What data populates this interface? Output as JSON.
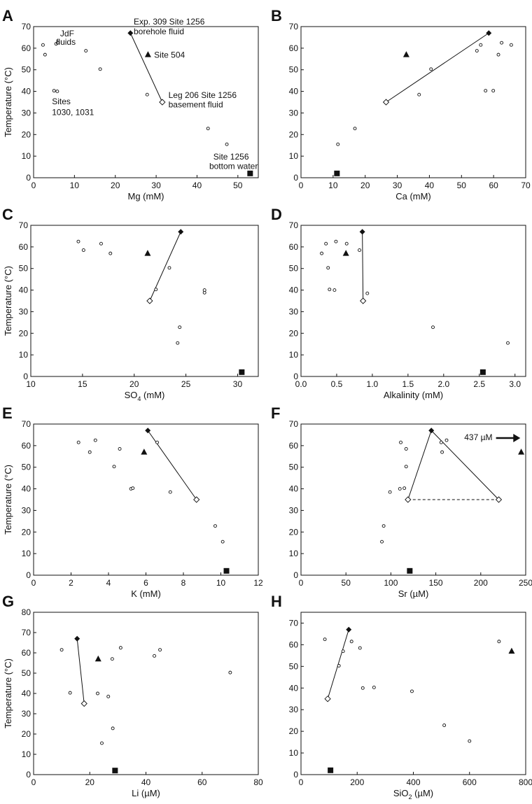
{
  "chart_data": [
    {
      "type": "scatter",
      "panel_label": "A",
      "xlabel": "Mg (mM)",
      "ylabel": "Temperature (°C)",
      "xlim": [
        0,
        55
      ],
      "xticks": [
        0,
        10,
        20,
        30,
        40,
        50
      ],
      "ylim": [
        0,
        70
      ],
      "yticks": [
        0,
        10,
        20,
        30,
        40,
        50,
        60,
        70
      ],
      "points": [
        [
          2.3,
          61.5
        ],
        [
          2.8,
          57
        ],
        [
          5.5,
          62
        ],
        [
          5.9,
          62.5
        ],
        [
          12.8,
          58.8
        ],
        [
          16.3,
          50.3
        ],
        [
          5.0,
          40.3
        ],
        [
          5.8,
          40
        ],
        [
          27.8,
          38.5
        ],
        [
          42.7,
          22.8
        ],
        [
          47.3,
          15.5
        ]
      ],
      "triangles": [
        [
          28,
          57
        ]
      ],
      "filled_diamonds": [
        [
          23.7,
          67
        ]
      ],
      "open_diamonds": [
        [
          31.5,
          35
        ]
      ],
      "squares": [
        [
          53,
          2
        ]
      ],
      "lines": [
        [
          [
            23.7,
            67
          ],
          [
            31.5,
            35
          ]
        ]
      ],
      "dashed_lines": [],
      "annotations": [
        {
          "text": "JdF",
          "x": 6.5,
          "y": 65.5,
          "anchor": "start"
        },
        {
          "text": "fluids",
          "x": 5.5,
          "y": 61.5,
          "anchor": "start"
        },
        {
          "text": "Sites",
          "x": 4.5,
          "y": 34,
          "anchor": "start"
        },
        {
          "text": "1030, 1031",
          "x": 4.5,
          "y": 29,
          "anchor": "start"
        },
        {
          "text": "Exp. 309 Site 1256",
          "x": 24.5,
          "y": 71,
          "anchor": "start"
        },
        {
          "text": "borehole fluid",
          "x": 24.5,
          "y": 66.5,
          "anchor": "start"
        },
        {
          "text": "Site 504",
          "x": 29.5,
          "y": 55.5,
          "anchor": "start"
        },
        {
          "text": "Leg 206 Site 1256",
          "x": 33,
          "y": 37,
          "anchor": "start"
        },
        {
          "text": "basement fluid",
          "x": 33,
          "y": 32.5,
          "anchor": "start"
        },
        {
          "text": "Site 1256",
          "x": 44,
          "y": 8.5,
          "anchor": "start"
        },
        {
          "text": "bottom water",
          "x": 43,
          "y": 4,
          "anchor": "start"
        }
      ]
    },
    {
      "type": "scatter",
      "panel_label": "B",
      "xlabel": "Ca (mM)",
      "ylabel": "",
      "xlim": [
        0,
        70
      ],
      "xticks": [
        0,
        10,
        20,
        30,
        40,
        50,
        60,
        70
      ],
      "ylim": [
        0,
        70
      ],
      "yticks": [
        0,
        10,
        20,
        30,
        40,
        50,
        60,
        70
      ],
      "points": [
        [
          11.5,
          15.5
        ],
        [
          16.8,
          22.8
        ],
        [
          36.8,
          38.5
        ],
        [
          40.5,
          50.3
        ],
        [
          54.8,
          58.8
        ],
        [
          56,
          61.5
        ],
        [
          57.5,
          40.3
        ],
        [
          59.9,
          40.3
        ],
        [
          61.5,
          57
        ],
        [
          62.5,
          62.5
        ],
        [
          65.5,
          61.5
        ]
      ],
      "triangles": [
        [
          32.8,
          57
        ]
      ],
      "filled_diamonds": [
        [
          58.5,
          67
        ]
      ],
      "open_diamonds": [
        [
          26.5,
          35
        ]
      ],
      "squares": [
        [
          11.2,
          2
        ]
      ],
      "lines": [
        [
          [
            26.5,
            35
          ],
          [
            58.5,
            67
          ]
        ]
      ],
      "dashed_lines": [],
      "annotations": []
    },
    {
      "type": "scatter",
      "panel_label": "C",
      "xlabel": "SO4 (mM)",
      "xlabel_parts": [
        "SO",
        "4",
        " (mM)"
      ],
      "ylabel": "Temperature (°C)",
      "xlim": [
        10,
        32
      ],
      "xticks": [
        10,
        15,
        20,
        25,
        30
      ],
      "ylim": [
        0,
        70
      ],
      "yticks": [
        0,
        10,
        20,
        30,
        40,
        50,
        60,
        70
      ],
      "points": [
        [
          14.6,
          62.5
        ],
        [
          15.1,
          58.5
        ],
        [
          16.8,
          61.5
        ],
        [
          17.7,
          57
        ],
        [
          22.1,
          40.3
        ],
        [
          23.4,
          50.3
        ],
        [
          24.2,
          15.5
        ],
        [
          24.4,
          22.8
        ],
        [
          26.8,
          40
        ],
        [
          26.8,
          38.8
        ]
      ],
      "triangles": [
        [
          21.3,
          57
        ]
      ],
      "filled_diamonds": [
        [
          24.5,
          67
        ]
      ],
      "open_diamonds": [
        [
          21.5,
          35
        ]
      ],
      "squares": [
        [
          30.4,
          2
        ]
      ],
      "lines": [
        [
          [
            24.5,
            67
          ],
          [
            21.5,
            35
          ]
        ]
      ],
      "dashed_lines": [],
      "annotations": []
    },
    {
      "type": "scatter",
      "panel_label": "D",
      "xlabel": "Alkalinity (mM)",
      "ylabel": "",
      "xlim": [
        0,
        3.15
      ],
      "xticks": [
        0,
        0.5,
        1.0,
        1.5,
        2.0,
        2.5,
        3.0
      ],
      "ylim": [
        0,
        70
      ],
      "yticks": [
        0,
        10,
        20,
        30,
        40,
        50,
        60,
        70
      ],
      "points": [
        [
          0.29,
          57
        ],
        [
          0.35,
          61.5
        ],
        [
          0.38,
          50.3
        ],
        [
          0.4,
          40.3
        ],
        [
          0.47,
          40
        ],
        [
          0.49,
          62.5
        ],
        [
          0.64,
          61.5
        ],
        [
          0.82,
          58.5
        ],
        [
          0.93,
          38.5
        ],
        [
          1.85,
          22.8
        ],
        [
          2.9,
          15.5
        ]
      ],
      "triangles": [
        [
          0.63,
          57
        ]
      ],
      "filled_diamonds": [
        [
          0.86,
          67
        ]
      ],
      "open_diamonds": [
        [
          0.87,
          35
        ]
      ],
      "squares": [
        [
          2.55,
          2
        ]
      ],
      "lines": [
        [
          [
            0.86,
            67
          ],
          [
            0.87,
            35
          ]
        ]
      ],
      "dashed_lines": [],
      "annotations": []
    },
    {
      "type": "scatter",
      "panel_label": "E",
      "xlabel": "K (mM)",
      "ylabel": "Temperature (°C)",
      "xlim": [
        0,
        12
      ],
      "xticks": [
        0,
        2,
        4,
        6,
        8,
        10,
        12
      ],
      "ylim": [
        0,
        70
      ],
      "yticks": [
        0,
        10,
        20,
        30,
        40,
        50,
        60,
        70
      ],
      "points": [
        [
          2.4,
          61.5
        ],
        [
          3.0,
          57
        ],
        [
          3.3,
          62.5
        ],
        [
          4.3,
          50.3
        ],
        [
          4.6,
          58.5
        ],
        [
          5.2,
          40
        ],
        [
          5.3,
          40.3
        ],
        [
          6.6,
          61.5
        ],
        [
          7.3,
          38.5
        ],
        [
          9.7,
          22.8
        ],
        [
          10.1,
          15.5
        ]
      ],
      "triangles": [
        [
          5.9,
          57
        ]
      ],
      "filled_diamonds": [
        [
          6.1,
          67
        ]
      ],
      "open_diamonds": [
        [
          8.7,
          35
        ]
      ],
      "squares": [
        [
          10.3,
          2
        ]
      ],
      "lines": [
        [
          [
            6.1,
            67
          ],
          [
            8.7,
            35
          ]
        ]
      ],
      "dashed_lines": [],
      "annotations": []
    },
    {
      "type": "scatter",
      "panel_label": "F",
      "xlabel": "Sr (µM)",
      "ylabel": "",
      "xlim": [
        0,
        250
      ],
      "xticks": [
        0,
        50,
        100,
        150,
        200,
        250
      ],
      "ylim": [
        0,
        70
      ],
      "yticks": [
        0,
        10,
        20,
        30,
        40,
        50,
        60,
        70
      ],
      "points": [
        [
          90,
          15.5
        ],
        [
          92,
          22.8
        ],
        [
          99,
          38.5
        ],
        [
          110,
          40
        ],
        [
          111,
          61.5
        ],
        [
          115,
          40.3
        ],
        [
          117,
          50.3
        ],
        [
          117,
          58.5
        ],
        [
          156,
          61.5
        ],
        [
          157,
          57
        ],
        [
          162,
          62.5
        ]
      ],
      "triangles": [
        [
          245,
          57
        ]
      ],
      "filled_diamonds": [
        [
          145,
          67
        ]
      ],
      "open_diamonds": [
        [
          119,
          35
        ],
        [
          220,
          35
        ]
      ],
      "squares": [
        [
          121,
          2
        ]
      ],
      "lines": [
        [
          [
            119,
            35
          ],
          [
            145,
            67
          ]
        ],
        [
          [
            145,
            67
          ],
          [
            220,
            35
          ]
        ]
      ],
      "dashed_lines": [
        [
          [
            119,
            35
          ],
          [
            220,
            35
          ]
        ]
      ],
      "annotations": [
        {
          "text": "437 µM",
          "x": 213,
          "y": 62.5,
          "anchor": "end"
        }
      ],
      "arrows": [
        {
          "from": [
            217,
            63.5
          ],
          "to": [
            244,
            63.5
          ]
        }
      ]
    },
    {
      "type": "scatter",
      "panel_label": "G",
      "xlabel": "Li (µM)",
      "ylabel": "Temperature (°C)",
      "xlim": [
        0,
        80
      ],
      "xticks": [
        0,
        20,
        40,
        60,
        80
      ],
      "ylim": [
        0,
        80
      ],
      "yticks": [
        0,
        10,
        20,
        30,
        40,
        50,
        60,
        70,
        80
      ],
      "points": [
        [
          10,
          61.5
        ],
        [
          13,
          40.3
        ],
        [
          22.8,
          40
        ],
        [
          24.3,
          15.5
        ],
        [
          26.6,
          38.5
        ],
        [
          28,
          57
        ],
        [
          28.2,
          22.8
        ],
        [
          31,
          62.5
        ],
        [
          43,
          58.5
        ],
        [
          45,
          61.5
        ],
        [
          70,
          50.3
        ]
      ],
      "triangles": [
        [
          23,
          57
        ]
      ],
      "filled_diamonds": [
        [
          15.5,
          67
        ]
      ],
      "open_diamonds": [
        [
          18,
          35
        ]
      ],
      "squares": [
        [
          29,
          2
        ]
      ],
      "lines": [
        [
          [
            15.5,
            67
          ],
          [
            18,
            35
          ]
        ]
      ],
      "dashed_lines": [],
      "annotations": []
    },
    {
      "type": "scatter",
      "panel_label": "H",
      "xlabel": "SiO2 (µM)",
      "xlabel_parts": [
        "SiO",
        "2",
        " (µM)"
      ],
      "ylabel": "",
      "xlim": [
        0,
        800
      ],
      "xticks": [
        0,
        200,
        400,
        600,
        800
      ],
      "ylim": [
        0,
        75
      ],
      "yticks": [
        0,
        10,
        20,
        30,
        40,
        50,
        60,
        70
      ],
      "points": [
        [
          85,
          62.5
        ],
        [
          135,
          50.3
        ],
        [
          150,
          57
        ],
        [
          180,
          61.5
        ],
        [
          210,
          58.5
        ],
        [
          220,
          40
        ],
        [
          260,
          40.3
        ],
        [
          395,
          38.5
        ],
        [
          510,
          22.8
        ],
        [
          600,
          15.5
        ],
        [
          705,
          61.5
        ]
      ],
      "triangles": [
        [
          750,
          57
        ]
      ],
      "filled_diamonds": [
        [
          170,
          67
        ]
      ],
      "open_diamonds": [
        [
          95,
          35
        ]
      ],
      "squares": [
        [
          105,
          2
        ]
      ],
      "lines": [
        [
          [
            170,
            67
          ],
          [
            95,
            35
          ]
        ]
      ],
      "dashed_lines": [],
      "annotations": []
    }
  ]
}
